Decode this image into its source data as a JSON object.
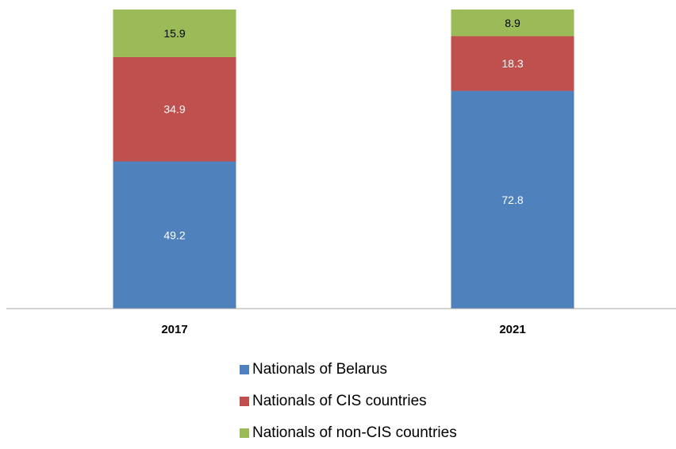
{
  "chart_data": {
    "type": "bar",
    "stacked": true,
    "categories": [
      "2017",
      "2021"
    ],
    "series": [
      {
        "name": "Nationals of Belarus",
        "values": [
          49.2,
          72.8
        ],
        "color": "#4f81bd",
        "label_color": "#ffffff"
      },
      {
        "name": "Nationals of CIS countries",
        "values": [
          34.9,
          18.3
        ],
        "color": "#c0504d",
        "label_color": "#ffffff"
      },
      {
        "name": "Nationals of non-CIS countries",
        "values": [
          15.9,
          8.9
        ],
        "color": "#9bbb59",
        "label_color": "#000000"
      }
    ],
    "ylim": [
      0,
      100
    ],
    "grid": false,
    "legend_position": "bottom"
  }
}
